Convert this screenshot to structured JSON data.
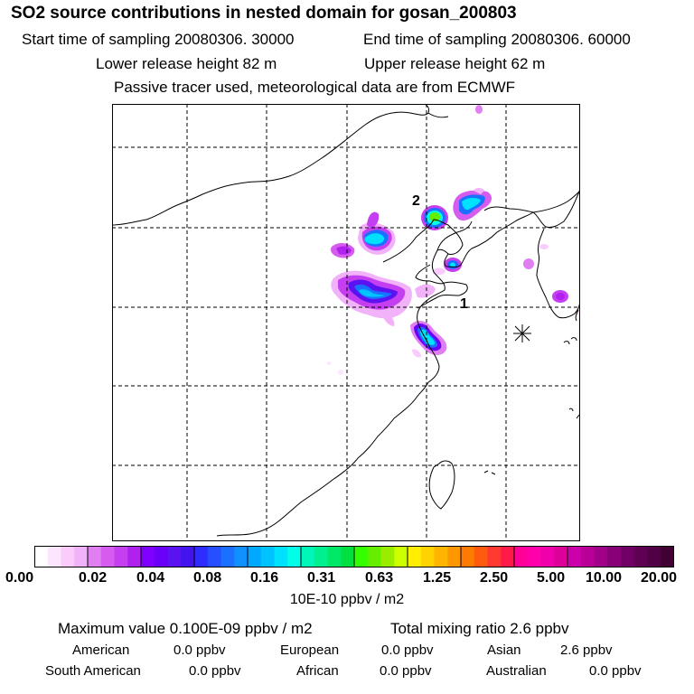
{
  "header": {
    "title": "SO2 source contributions in nested domain for gosan_200803",
    "start_label": "Start time of sampling 20080306. 30000",
    "end_label": "End time of sampling 20080306. 60000",
    "lower_label": "Lower release height   82 m",
    "upper_label": "Upper release height   62 m",
    "note": "Passive tracer used, meteorological data are from ECMWF"
  },
  "map": {
    "markers": [
      {
        "label": "2"
      },
      {
        "label": "1"
      }
    ]
  },
  "colorbar": {
    "unit": "10E-10 ppbv / m2",
    "ticks": [
      "0.00",
      "0.02",
      "0.04",
      "0.08",
      "0.16",
      "0.31",
      "0.63",
      "1.25",
      "2.50",
      "5.00",
      "10.00",
      "20.00"
    ],
    "colors": [
      "#ffffff",
      "#fde6fd",
      "#f9ccfb",
      "#f2b2f9",
      "#e07ff2",
      "#d65cf0",
      "#c43ff0",
      "#b021f0",
      "#8000ff",
      "#6a00f8",
      "#5a12f0",
      "#4414ef",
      "#2f2cff",
      "#2650ff",
      "#1a71ff",
      "#1190ff",
      "#00a8ff",
      "#00c2ff",
      "#00e0ff",
      "#00ffe8",
      "#00f5b8",
      "#00f090",
      "#00e868",
      "#00e040",
      "#33ff00",
      "#66ee00",
      "#99ee00",
      "#ccff00",
      "#ffee00",
      "#ffd200",
      "#ffb400",
      "#ff9800",
      "#ff7a00",
      "#ff5a10",
      "#ff3a30",
      "#ff1a48",
      "#ff0099",
      "#ff00aa",
      "#ee00aa",
      "#dd0099",
      "#cc00aa",
      "#b80099",
      "#a00088",
      "#880077",
      "#700066",
      "#600055",
      "#500044",
      "#400033"
    ]
  },
  "footer": {
    "maximum": "Maximum value  0.100E-09 ppbv / m2",
    "total": "Total mixing ratio       2.6 ppbv",
    "regions": [
      {
        "name": "American",
        "value": "0.0 ppbv"
      },
      {
        "name": "European",
        "value": "0.0 ppbv"
      },
      {
        "name": "Asian",
        "value": "2.6 ppbv"
      },
      {
        "name": "South American",
        "value": "0.0 ppbv"
      },
      {
        "name": "African",
        "value": "0.0 ppbv"
      },
      {
        "name": "Australian",
        "value": "0.0 ppbv"
      }
    ]
  }
}
